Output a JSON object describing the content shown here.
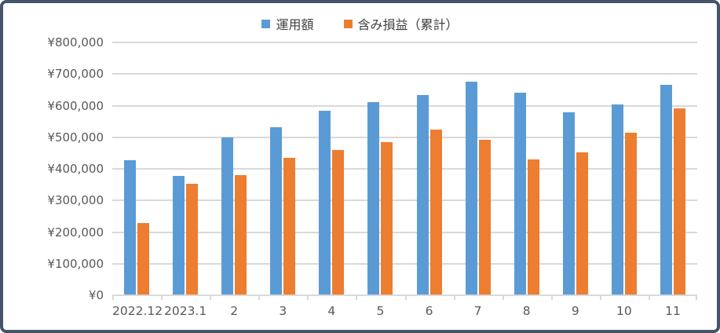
{
  "colors": {
    "series_operating": "#5B9BD5",
    "series_unrealized": "#ED7D31",
    "gridline": "#D9D9D9",
    "axis_text": "#595959",
    "legend_text": "#404040",
    "frame_border": "#44546A",
    "background": "#FFFFFF"
  },
  "chart_data": {
    "type": "bar",
    "title": "",
    "xlabel": "",
    "ylabel": "",
    "categories": [
      "2022.12",
      "2023.1",
      "2",
      "3",
      "4",
      "5",
      "6",
      "7",
      "8",
      "9",
      "10",
      "11"
    ],
    "series": [
      {
        "name": "運用額",
        "color": "#5B9BD5",
        "values": [
          428000,
          378000,
          500000,
          532000,
          584000,
          610000,
          634000,
          675000,
          641000,
          580000,
          603000,
          666000
        ]
      },
      {
        "name": "含み損益（累計）",
        "color": "#ED7D31",
        "values": [
          228000,
          352000,
          381000,
          435000,
          459000,
          484000,
          524000,
          491000,
          430000,
          453000,
          515000,
          591000
        ]
      }
    ],
    "ylim": [
      0,
      800000
    ],
    "ytick_step": 100000,
    "ytick_prefix": "¥",
    "grid": true,
    "legend_position": "top"
  }
}
